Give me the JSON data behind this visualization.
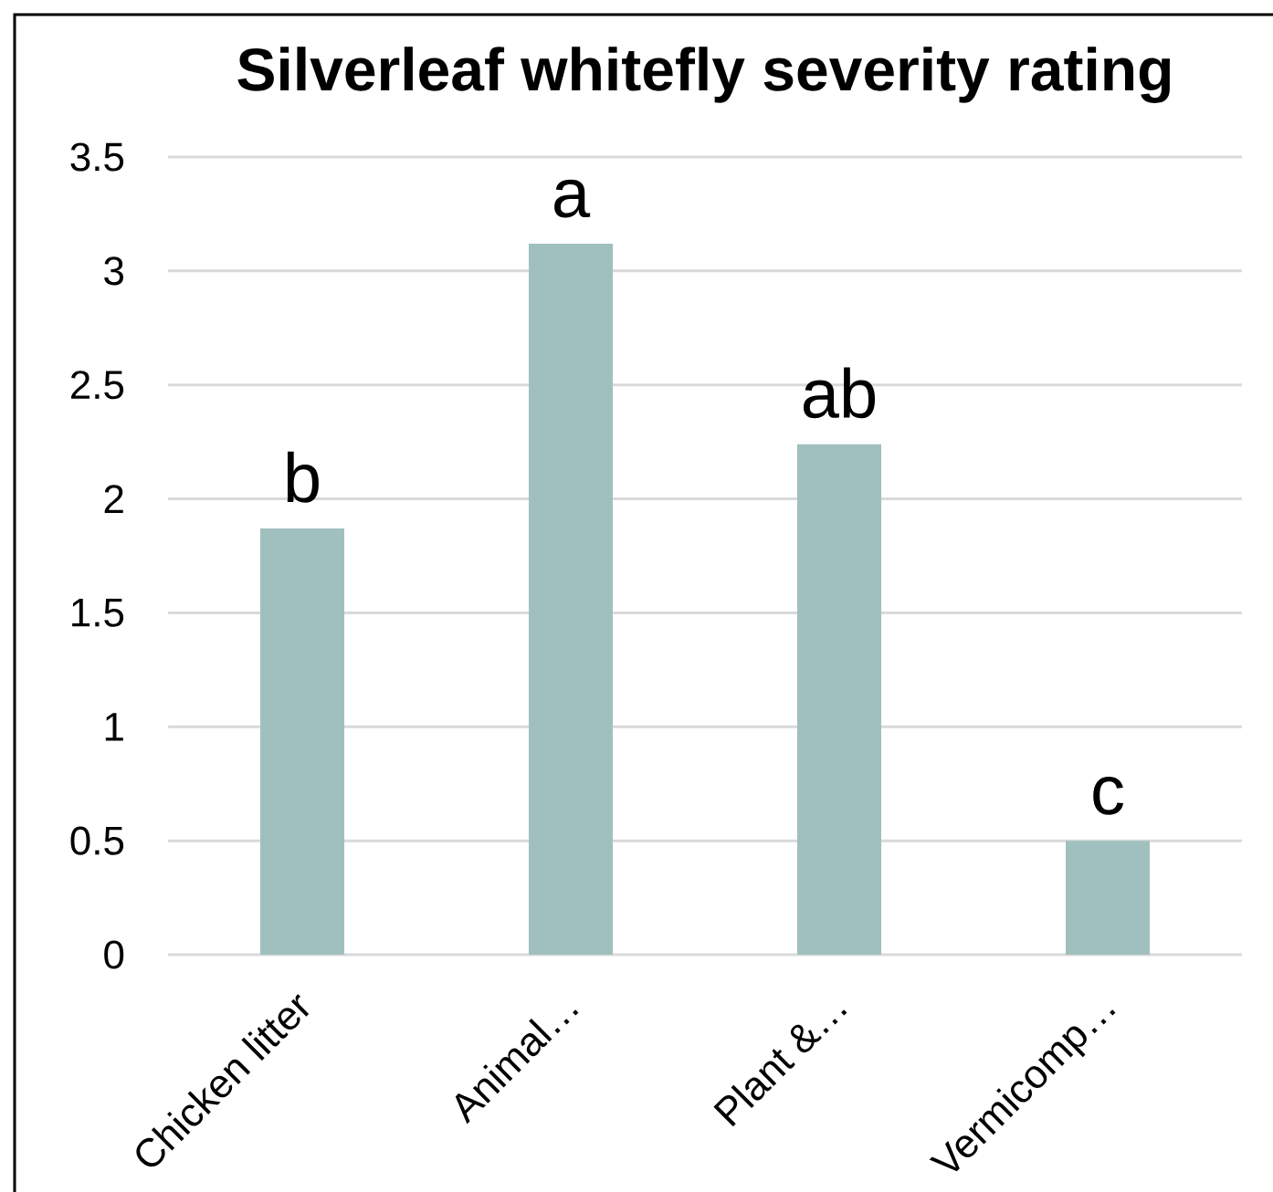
{
  "chart_data": {
    "type": "bar",
    "title": "Silverleaf whitefly severity rating",
    "categories": [
      "Chicken litter",
      "Animal…",
      "Plant &…",
      "Vermicomp…"
    ],
    "values": [
      1.87,
      3.12,
      2.24,
      0.5
    ],
    "color": "#a0c0bf",
    "ylim": [
      0,
      3.5
    ],
    "yticks": [
      0,
      0.5,
      1,
      1.5,
      2,
      2.5,
      3,
      3.5
    ],
    "grid": "y",
    "annotations": [
      {
        "text": "b",
        "x": "Chicken litter",
        "y": 1.87
      },
      {
        "text": "a",
        "x": "Animal…",
        "y": 3.12
      },
      {
        "text": "ab",
        "x": "Plant &…",
        "y": 2.24
      },
      {
        "text": "c",
        "x": "Vermicomp…",
        "y": 0.5
      }
    ]
  }
}
